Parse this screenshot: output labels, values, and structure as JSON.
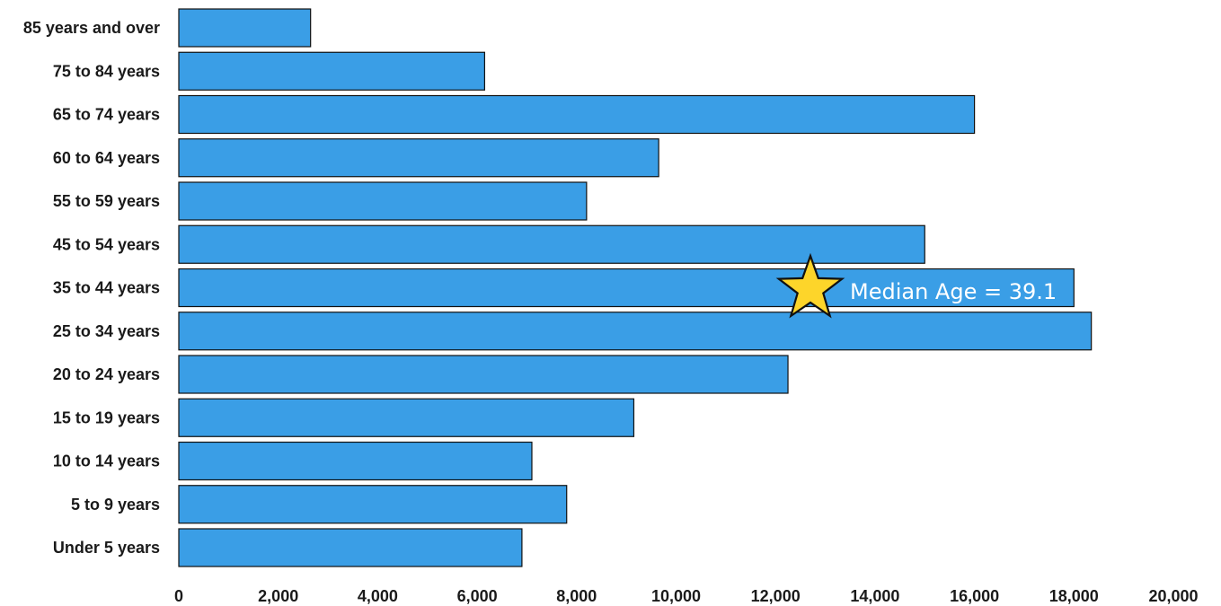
{
  "chart_data": {
    "type": "bar",
    "orientation": "horizontal",
    "categories": [
      "85 years and over",
      "75 to 84 years",
      "65 to 74 years",
      "60 to 64 years",
      "55 to 59 years",
      "45 to 54 years",
      "35 to 44 years",
      "25 to 34 years",
      "20 to 24 years",
      "15 to 19 years",
      "10 to 14 years",
      "5 to 9 years",
      "Under 5 years"
    ],
    "values": [
      2650,
      6150,
      16000,
      9650,
      8200,
      15000,
      18000,
      18350,
      12250,
      9150,
      7100,
      7800,
      6900
    ],
    "xlim": [
      0,
      20000
    ],
    "x_ticks": [
      "0",
      "2,000",
      "4,000",
      "6,000",
      "8,000",
      "10,000",
      "12,000",
      "14,000",
      "16,000",
      "18,000",
      "20,000"
    ],
    "title": "",
    "xlabel": "",
    "ylabel": "",
    "grid": false,
    "colors": {
      "bar_fill": "#3a9ee6",
      "bar_stroke": "#111111",
      "star_fill": "#fdd52a",
      "star_stroke": "#111111"
    },
    "annotation": {
      "text": "Median Age = 39.1",
      "icon": "star-icon"
    }
  }
}
